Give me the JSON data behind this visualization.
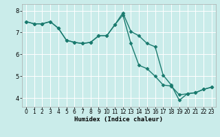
{
  "title": "",
  "xlabel": "Humidex (Indice chaleur)",
  "ylabel": "",
  "background_color": "#caecea",
  "line_color": "#1a7a6e",
  "grid_color": "#ffffff",
  "grid_color_minor": "#e8f8f8",
  "xlim": [
    -0.5,
    23.5
  ],
  "ylim": [
    3.6,
    8.3
  ],
  "xticks": [
    0,
    1,
    2,
    3,
    4,
    5,
    6,
    7,
    8,
    9,
    10,
    11,
    12,
    13,
    14,
    15,
    16,
    17,
    18,
    19,
    20,
    21,
    22,
    23
  ],
  "yticks": [
    4,
    5,
    6,
    7,
    8
  ],
  "line1_x": [
    0,
    1,
    2,
    3,
    4,
    5,
    6,
    7,
    8,
    9,
    10,
    11,
    12,
    13,
    14,
    15,
    16,
    17,
    18,
    19,
    20,
    21,
    22,
    23
  ],
  "line1_y": [
    7.5,
    7.4,
    7.4,
    7.5,
    7.2,
    6.65,
    6.55,
    6.5,
    6.55,
    6.85,
    6.85,
    7.35,
    7.8,
    6.5,
    5.5,
    5.35,
    5.0,
    4.6,
    4.55,
    4.15,
    4.2,
    4.25,
    4.4,
    4.5
  ],
  "line2_x": [
    0,
    1,
    2,
    3,
    4,
    5,
    6,
    7,
    8,
    9,
    10,
    11,
    12,
    13,
    14,
    15,
    16,
    17,
    18,
    19,
    20,
    21,
    22,
    23
  ],
  "line2_y": [
    7.5,
    7.4,
    7.4,
    7.5,
    7.2,
    6.65,
    6.55,
    6.5,
    6.55,
    6.85,
    6.85,
    7.35,
    7.9,
    7.05,
    6.85,
    6.5,
    6.35,
    5.05,
    4.6,
    3.9,
    4.2,
    4.25,
    4.4,
    4.5
  ],
  "marker": "D",
  "markersize": 2.5,
  "linewidth": 1.0,
  "tick_fontsize_x": 5.5,
  "tick_fontsize_y": 6,
  "xlabel_fontsize": 6.5,
  "xlabel_fontweight": "bold"
}
